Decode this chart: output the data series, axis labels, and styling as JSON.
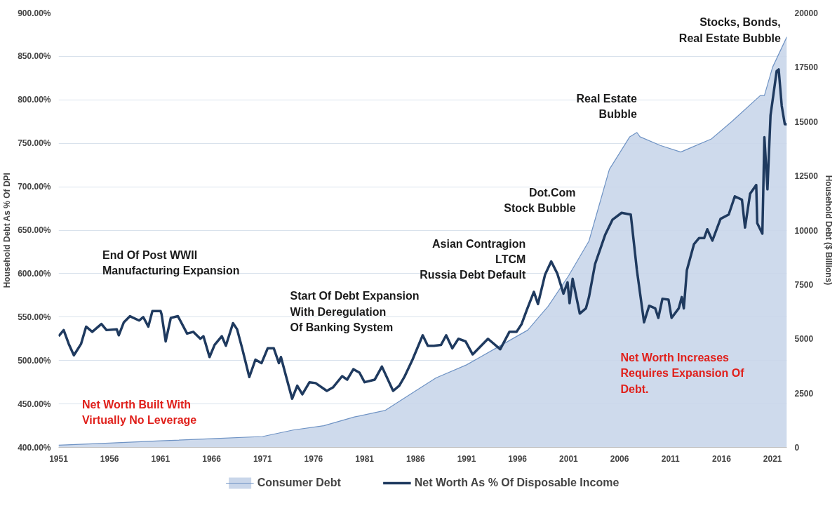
{
  "chart_data": {
    "type": "line",
    "ylabel": "Household Debt As % Of DPI",
    "y2label": "Household Debt ($ Billions)",
    "xlim": [
      1951,
      2022.4
    ],
    "xticks": [
      1951,
      1956,
      1961,
      1966,
      1971,
      1976,
      1981,
      1986,
      1991,
      1996,
      2001,
      2006,
      2011,
      2016,
      2021
    ],
    "ylim": [
      400,
      900
    ],
    "yticks": [
      {
        "value": 400,
        "label": "400.00%"
      },
      {
        "value": 450,
        "label": "450.00%"
      },
      {
        "value": 500,
        "label": "500.00%"
      },
      {
        "value": 550,
        "label": "550.00%"
      },
      {
        "value": 600,
        "label": "600.00%"
      },
      {
        "value": 650,
        "label": "650.00%"
      },
      {
        "value": 700,
        "label": "700.00%"
      },
      {
        "value": 750,
        "label": "750.00%"
      },
      {
        "value": 800,
        "label": "800.00%"
      },
      {
        "value": 850,
        "label": "850.00%"
      },
      {
        "value": 900,
        "label": "900.00%"
      }
    ],
    "y2lim": [
      0,
      20000
    ],
    "y2ticks": [
      0,
      2500,
      5000,
      7500,
      10000,
      12500,
      15000,
      17500,
      20000
    ],
    "grid": "y",
    "legend": "bottom",
    "series": [
      {
        "name": "Consumer Debt",
        "type": "area",
        "axis": "y2",
        "color": "#6f93c4",
        "x": [
          1951,
          1956,
          1961,
          1966,
          1971,
          1974,
          1977,
          1980,
          1983,
          1986,
          1988,
          1991,
          1994,
          1997,
          1999,
          2001,
          2003,
          2005,
          2007,
          2007.7,
          2008,
          2010,
          2012,
          2013,
          2015,
          2017,
          2019.8,
          2020.2,
          2021,
          2022.4
        ],
        "values": [
          100,
          200,
          300,
          400,
          500,
          800,
          1000,
          1400,
          1700,
          2600,
          3200,
          3800,
          4600,
          5400,
          6500,
          7900,
          9500,
          12800,
          14300,
          14500,
          14300,
          13900,
          13600,
          13800,
          14200,
          15000,
          16200,
          16200,
          17500,
          18900
        ]
      },
      {
        "name": "Net Worth As % Of Disposable Income",
        "color": "#1f3a5f",
        "x": [
          1951.0,
          1951.5,
          1952.0,
          1952.5,
          1953.2,
          1953.7,
          1954.3,
          1955.2,
          1955.7,
          1956.7,
          1956.9,
          1957.4,
          1958.0,
          1958.9,
          1959.3,
          1959.8,
          1960.2,
          1961.0,
          1961.1,
          1961.5,
          1962.0,
          1962.7,
          1963.6,
          1964.2,
          1964.9,
          1965.2,
          1965.8,
          1966.3,
          1967.0,
          1967.4,
          1968.1,
          1968.5,
          1969.0,
          1969.7,
          1970.3,
          1970.9,
          1971.5,
          1972.1,
          1972.6,
          1972.8,
          1973.3,
          1973.9,
          1974.4,
          1974.9,
          1975.6,
          1976.2,
          1977.3,
          1977.9,
          1978.8,
          1979.3,
          1979.9,
          1980.5,
          1981.0,
          1982.0,
          1982.7,
          1983.8,
          1984.4,
          1984.9,
          1985.7,
          1986.7,
          1987.2,
          1987.8,
          1988.5,
          1989.0,
          1989.6,
          1990.2,
          1990.9,
          1991.6,
          1993.1,
          1994.3,
          1995.2,
          1995.9,
          1996.4,
          1996.9,
          1997.6,
          1998.0,
          1998.7,
          1999.3,
          1999.9,
          2000.5,
          2000.9,
          2001.1,
          2001.4,
          2002.1,
          2002.7,
          2003.0,
          2003.6,
          2004.6,
          2005.3,
          2006.2,
          2007.1,
          2007.7,
          2008.4,
          2008.9,
          2009.5,
          2009.8,
          2010.2,
          2010.8,
          2011.1,
          2011.8,
          2012.1,
          2012.3,
          2012.6,
          2013.3,
          2013.8,
          2014.3,
          2014.6,
          2015.1,
          2015.9,
          2016.7,
          2017.3,
          2018.0,
          2018.3,
          2018.8,
          2019.4,
          2019.5,
          2020.0,
          2020.2,
          2020.5,
          2020.8,
          2021.4,
          2021.6,
          2021.9,
          2022.2,
          2022.4
        ],
        "values": [
          528,
          535,
          519,
          506,
          519,
          539,
          533,
          542,
          535,
          536,
          529,
          544,
          551,
          546,
          550,
          539,
          557,
          557,
          553,
          522,
          549,
          551,
          531,
          533,
          525,
          528,
          504,
          518,
          528,
          517,
          543,
          536,
          514,
          481,
          501,
          497,
          514,
          514,
          497,
          504,
          482,
          456,
          471,
          461,
          475,
          474,
          465,
          469,
          482,
          478,
          490,
          486,
          475,
          478,
          493,
          465,
          471,
          481,
          501,
          529,
          517,
          517,
          518,
          529,
          514,
          525,
          522,
          507,
          525,
          513,
          533,
          533,
          542,
          558,
          579,
          565,
          599,
          614,
          600,
          577,
          590,
          566,
          594,
          554,
          560,
          573,
          611,
          645,
          662,
          670,
          668,
          604,
          544,
          563,
          560,
          549,
          571,
          570,
          549,
          560,
          573,
          560,
          604,
          634,
          641,
          641,
          651,
          638,
          663,
          668,
          689,
          685,
          653,
          692,
          702,
          658,
          646,
          757,
          697,
          782,
          833,
          835,
          793,
          772,
          772
        ]
      }
    ],
    "annotations": [
      "End Of Post WWII\nManufacturing Expansion",
      "Start Of Debt Expansion\nWith Deregulation\nOf Banking System",
      "Asian Contragion\nLTCM\nRussia Debt Default",
      "Dot.Com\nStock Bubble",
      "Real Estate\nBubble",
      "Stocks, Bonds,\nReal Estate Bubble",
      "Net Worth Built With\nVirtually No Leverage",
      "Net Worth Increases\nRequires Expansion Of\nDebt."
    ]
  }
}
